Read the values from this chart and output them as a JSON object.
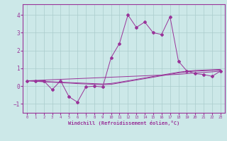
{
  "title": "",
  "xlabel": "Windchill (Refroidissement éolien,°C)",
  "bg_color": "#cce8e8",
  "line_color": "#993399",
  "grid_color": "#aacccc",
  "xlim": [
    -0.5,
    23.5
  ],
  "ylim": [
    -1.5,
    4.6
  ],
  "xticks": [
    0,
    1,
    2,
    3,
    4,
    5,
    6,
    7,
    8,
    9,
    10,
    11,
    12,
    13,
    14,
    15,
    16,
    17,
    18,
    19,
    20,
    21,
    22,
    23
  ],
  "yticks": [
    -1,
    0,
    1,
    2,
    3,
    4
  ],
  "series_main": [
    0.3,
    0.3,
    0.3,
    -0.2,
    0.3,
    -0.6,
    -0.9,
    -0.05,
    0.0,
    -0.05,
    1.6,
    2.4,
    4.0,
    3.3,
    3.6,
    3.0,
    2.9,
    3.9,
    1.4,
    0.85,
    0.7,
    0.65,
    0.55,
    0.85
  ],
  "line1": [
    0.3,
    0.28,
    0.26,
    0.24,
    0.22,
    0.2,
    0.18,
    0.16,
    0.14,
    0.12,
    0.15,
    0.22,
    0.3,
    0.38,
    0.46,
    0.54,
    0.62,
    0.7,
    0.78,
    0.84,
    0.88,
    0.9,
    0.92,
    0.94
  ],
  "line2": [
    0.3,
    0.32,
    0.34,
    0.36,
    0.38,
    0.4,
    0.42,
    0.44,
    0.46,
    0.48,
    0.5,
    0.52,
    0.54,
    0.56,
    0.58,
    0.6,
    0.62,
    0.64,
    0.66,
    0.7,
    0.74,
    0.77,
    0.8,
    0.84
  ],
  "line3": [
    0.3,
    0.27,
    0.24,
    0.22,
    0.19,
    0.17,
    0.14,
    0.12,
    0.1,
    0.08,
    0.1,
    0.18,
    0.26,
    0.34,
    0.42,
    0.5,
    0.58,
    0.66,
    0.74,
    0.8,
    0.84,
    0.86,
    0.88,
    0.9
  ]
}
